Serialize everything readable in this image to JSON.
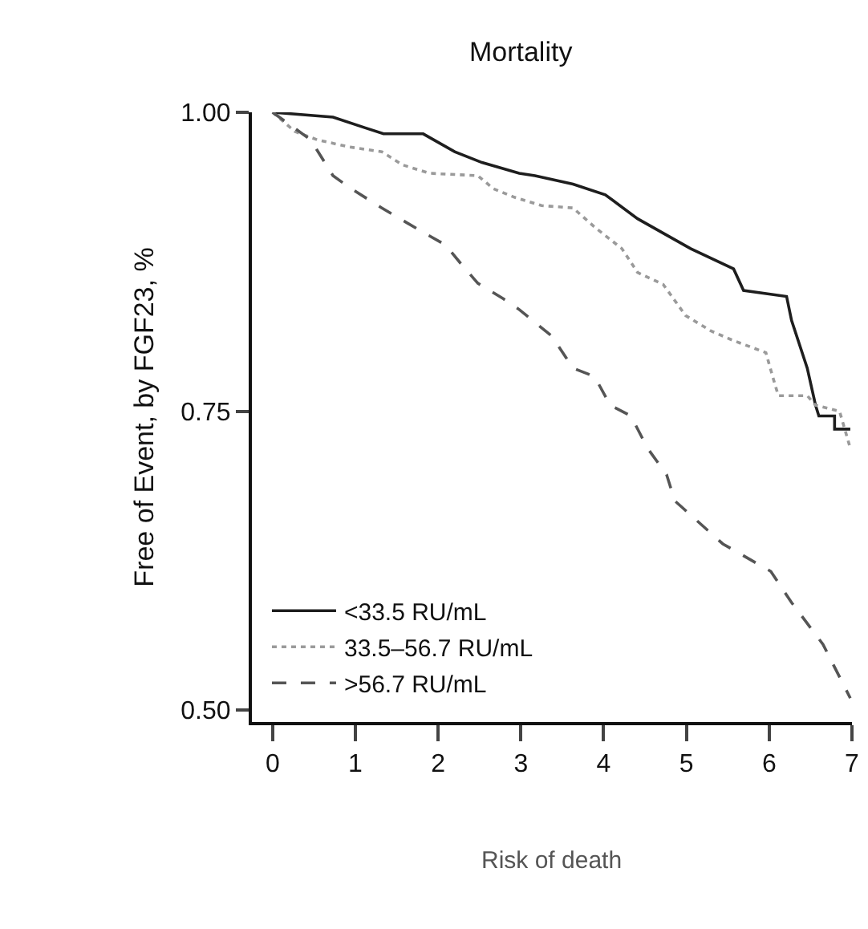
{
  "chart_data": {
    "type": "line",
    "title": "Mortality",
    "ylabel": "Free of Event, by FGF23, %",
    "annotations": [
      "Risk of death"
    ],
    "xlim": [
      -0.25,
      7
    ],
    "xticks": [
      0,
      1,
      2,
      3,
      4,
      5,
      6,
      7
    ],
    "ylim": [
      0.49,
      1.0
    ],
    "yticks": [
      {
        "value": 0.5,
        "label": "0.50"
      },
      {
        "value": 0.75,
        "label": "0.75"
      },
      {
        "value": 1.0,
        "label": "1.00"
      }
    ],
    "grid": false,
    "legend": "bottom left",
    "marker": "none",
    "series": [
      {
        "name": "<33.5 RU/mL",
        "color": "#1e1e1e",
        "line_style": "solid",
        "x": [
          0,
          0.73,
          1.12,
          1.34,
          1.82,
          2.2,
          2.53,
          2.98,
          3.17,
          3.63,
          4.02,
          4.41,
          5.05,
          5.57,
          5.69,
          6.21,
          6.27,
          6.46,
          6.56,
          6.6,
          6.79,
          6.79,
          6.98
        ],
        "values": [
          1.0,
          0.996,
          0.987,
          0.982,
          0.982,
          0.967,
          0.958,
          0.949,
          0.947,
          0.94,
          0.931,
          0.911,
          0.886,
          0.869,
          0.851,
          0.846,
          0.826,
          0.786,
          0.755,
          0.746,
          0.746,
          0.735,
          0.735
        ]
      },
      {
        "name": "33.5–56.7 RU/mL",
        "color": "#9a9a9a",
        "line_style": "dotted",
        "x": [
          0,
          0.27,
          0.54,
          0.93,
          1.32,
          1.57,
          1.9,
          2.48,
          2.67,
          2.92,
          3.25,
          3.63,
          3.89,
          4.22,
          4.41,
          4.72,
          4.99,
          5.3,
          5.57,
          5.96,
          6.05,
          6.11,
          6.46,
          6.56,
          6.85,
          6.98
        ],
        "values": [
          1.0,
          0.984,
          0.977,
          0.971,
          0.967,
          0.956,
          0.949,
          0.947,
          0.936,
          0.929,
          0.922,
          0.92,
          0.904,
          0.886,
          0.866,
          0.856,
          0.83,
          0.817,
          0.809,
          0.799,
          0.777,
          0.763,
          0.763,
          0.755,
          0.75,
          0.719
        ]
      },
      {
        "name": ">56.7 RU/mL",
        "color": "#555555",
        "line_style": "dashed",
        "x": [
          0,
          0.46,
          0.73,
          0.93,
          1.32,
          1.76,
          2.09,
          2.28,
          2.48,
          2.79,
          2.98,
          3.37,
          3.63,
          3.89,
          4.08,
          4.33,
          4.53,
          4.76,
          4.86,
          5.44,
          6.02,
          6.27,
          6.65,
          6.98
        ],
        "values": [
          1.0,
          0.977,
          0.947,
          0.937,
          0.92,
          0.902,
          0.889,
          0.873,
          0.857,
          0.844,
          0.835,
          0.813,
          0.786,
          0.779,
          0.755,
          0.746,
          0.719,
          0.697,
          0.675,
          0.639,
          0.616,
          0.59,
          0.555,
          0.51
        ]
      }
    ]
  }
}
